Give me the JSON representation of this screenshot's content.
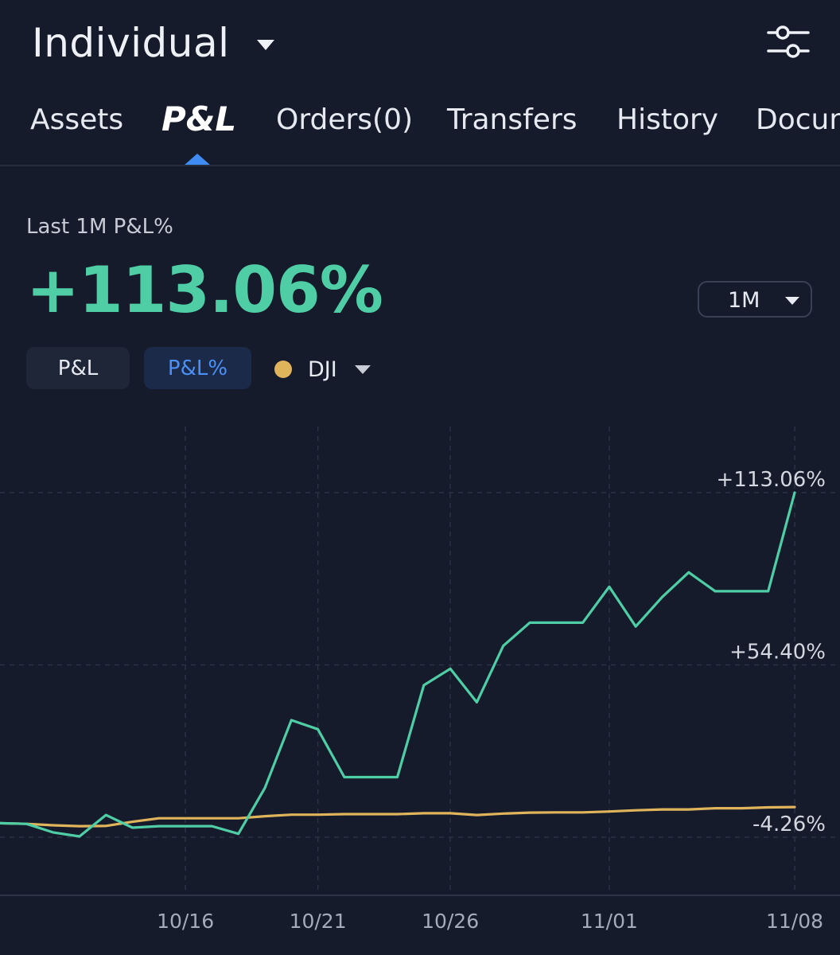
{
  "header": {
    "account_name": "Individual",
    "account_caret_icon": "caret-down-icon",
    "settings_icon": "sliders-icon"
  },
  "tabs": [
    {
      "label": "Assets",
      "active": false
    },
    {
      "label": "P&L",
      "active": true
    },
    {
      "label": "Orders(0)",
      "active": false
    },
    {
      "label": "Transfers",
      "active": false
    },
    {
      "label": "History",
      "active": false
    },
    {
      "label": "Documents",
      "active": false
    }
  ],
  "summary": {
    "label": "Last 1M P&L%",
    "value": "+113.06%"
  },
  "range_select": {
    "value": "1M"
  },
  "segments": {
    "pl_label": "P&L",
    "pl_pct_label": "P&L%"
  },
  "benchmark": {
    "label": "DJI",
    "color": "#dfb45b"
  },
  "colors": {
    "background": "#151b2b",
    "positive": "#4fcea6",
    "accent": "#3f8cf4",
    "benchmark": "#dfb45b"
  },
  "chart_data": {
    "type": "line",
    "y_tick_labels": [
      "+113.06%",
      "+54.40%",
      "-4.26%"
    ],
    "y_ticks": [
      113.06,
      54.4,
      -4.26
    ],
    "ylim": [
      -23,
      135
    ],
    "x_tick_labels": [
      "10/16",
      "10/21",
      "10/26",
      "11/01",
      "11/08"
    ],
    "x_tick_index": [
      7,
      12,
      17,
      23,
      30
    ],
    "grid": true,
    "series": [
      {
        "name": "P&L%",
        "color": "#4fcea6",
        "values": [
          0.5,
          0.3,
          -2.6,
          -4.0,
          3.3,
          -1.0,
          -0.5,
          -0.5,
          -0.5,
          -3.1,
          12.5,
          35.6,
          32.5,
          16.2,
          16.2,
          16.2,
          47.5,
          53.1,
          41.7,
          60.9,
          68.8,
          68.8,
          68.8,
          81.0,
          67.5,
          77.5,
          85.9,
          79.5,
          79.5,
          79.5,
          113.06
        ]
      },
      {
        "name": "DJI",
        "color": "#dfb45b",
        "values": [
          0.5,
          0.3,
          -0.2,
          -0.5,
          -0.4,
          1.0,
          2.2,
          2.2,
          2.2,
          2.2,
          2.9,
          3.4,
          3.4,
          3.6,
          3.6,
          3.6,
          3.9,
          3.9,
          3.3,
          3.8,
          4.1,
          4.2,
          4.2,
          4.5,
          4.9,
          5.2,
          5.2,
          5.6,
          5.6,
          5.9,
          6.0
        ]
      }
    ]
  }
}
